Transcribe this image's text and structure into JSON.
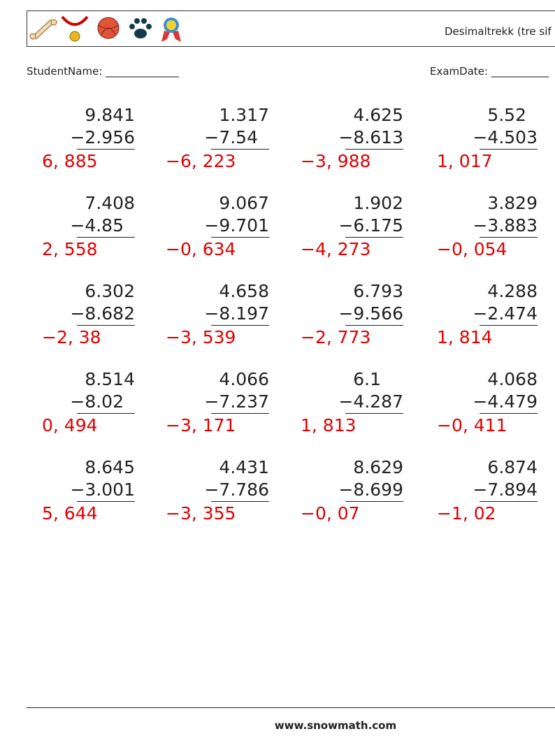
{
  "header": {
    "title": "Desimaltrekk (tre sif"
  },
  "student_name": "StudentName: ______________",
  "exam_date": "ExamDate: ___________",
  "problems": [
    [
      {
        "top": "9.841",
        "bottom": "−2.956",
        "answer": "6, 885"
      },
      {
        "top": "1.317",
        "bottom": "−7.54",
        "answer": "−6, 223"
      },
      {
        "top": "4.625",
        "bottom": "−8.613",
        "answer": "−3, 988"
      },
      {
        "top": "5.52",
        "bottom": "−4.503",
        "answer": "1, 017"
      }
    ],
    [
      {
        "top": "7.408",
        "bottom": "−4.85",
        "answer": "2, 558"
      },
      {
        "top": "9.067",
        "bottom": "−9.701",
        "answer": "−0, 634"
      },
      {
        "top": "1.902",
        "bottom": "−6.175",
        "answer": "−4, 273"
      },
      {
        "top": "3.829",
        "bottom": "−3.883",
        "answer": "−0, 054"
      }
    ],
    [
      {
        "top": "6.302",
        "bottom": "−8.682",
        "answer": "−2, 38"
      },
      {
        "top": "4.658",
        "bottom": "−8.197",
        "answer": "−3, 539"
      },
      {
        "top": "6.793",
        "bottom": "−9.566",
        "answer": "−2, 773"
      },
      {
        "top": "4.288",
        "bottom": "−2.474",
        "answer": "1, 814"
      }
    ],
    [
      {
        "top": "8.514",
        "bottom": "−8.02",
        "answer": "0, 494"
      },
      {
        "top": "4.066",
        "bottom": "−7.237",
        "answer": "−3, 171"
      },
      {
        "top": "6.1",
        "bottom": "−4.287",
        "answer": "1, 813"
      },
      {
        "top": "4.068",
        "bottom": "−4.479",
        "answer": "−0, 411"
      }
    ],
    [
      {
        "top": "8.645",
        "bottom": "−3.001",
        "answer": "5, 644"
      },
      {
        "top": "4.431",
        "bottom": "−7.786",
        "answer": "−3, 355"
      },
      {
        "top": "8.629",
        "bottom": "−8.699",
        "answer": "−0, 07"
      },
      {
        "top": "6.874",
        "bottom": "−7.894",
        "answer": "−1, 02"
      }
    ]
  ],
  "footer": "www.snowmath.com"
}
